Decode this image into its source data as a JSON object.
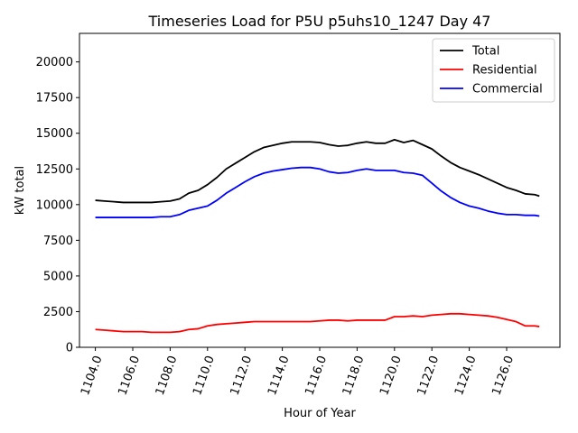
{
  "chart_data": {
    "type": "line",
    "title": "Timeseries Load for P5U p5uhs10_1247  Day 47",
    "xlabel": "Hour of Year",
    "ylabel": "kW total",
    "xlim": [
      1103.15,
      1128.85
    ],
    "ylim": [
      0,
      22000
    ],
    "xticks": [
      1104,
      1106,
      1108,
      1110,
      1112,
      1114,
      1116,
      1118,
      1120,
      1122,
      1124,
      1126
    ],
    "xtick_labels": [
      "1104.0",
      "1106.0",
      "1108.0",
      "1110.0",
      "1112.0",
      "1114.0",
      "1116.0",
      "1118.0",
      "1120.0",
      "1122.0",
      "1124.0",
      "1126.0"
    ],
    "yticks": [
      0,
      2500,
      5000,
      7500,
      10000,
      12500,
      15000,
      17500,
      20000
    ],
    "ytick_labels": [
      "0",
      "2500",
      "5000",
      "7500",
      "10000",
      "12500",
      "15000",
      "17500",
      "20000"
    ],
    "grid": false,
    "legend": "top-right",
    "x": [
      1104.0,
      1104.5,
      1105.0,
      1105.5,
      1106.0,
      1106.5,
      1107.0,
      1107.5,
      1108.0,
      1108.5,
      1109.0,
      1109.5,
      1110.0,
      1110.5,
      1111.0,
      1111.5,
      1112.0,
      1112.5,
      1113.0,
      1113.5,
      1114.0,
      1114.5,
      1115.0,
      1115.5,
      1116.0,
      1116.5,
      1117.0,
      1117.5,
      1118.0,
      1118.5,
      1119.0,
      1119.5,
      1120.0,
      1120.5,
      1121.0,
      1121.5,
      1122.0,
      1122.5,
      1123.0,
      1123.5,
      1124.0,
      1124.5,
      1125.0,
      1125.5,
      1126.0,
      1126.5,
      1127.0,
      1127.5,
      1127.75
    ],
    "series": [
      {
        "name": "Total",
        "color": "#000000",
        "values": [
          10300,
          10250,
          10200,
          10150,
          10150,
          10150,
          10150,
          10200,
          10250,
          10400,
          10800,
          11000,
          11400,
          11900,
          12500,
          12900,
          13300,
          13700,
          14000,
          14150,
          14300,
          14400,
          14400,
          14400,
          14350,
          14200,
          14100,
          14150,
          14300,
          14400,
          14300,
          14300,
          14550,
          14350,
          14500,
          14200,
          13900,
          13400,
          12950,
          12600,
          12350,
          12100,
          11800,
          11500,
          11200,
          11000,
          10750,
          10700,
          10600
        ]
      },
      {
        "name": "Residential",
        "color": "#ff0000",
        "values": [
          1250,
          1200,
          1150,
          1100,
          1100,
          1100,
          1050,
          1050,
          1050,
          1100,
          1250,
          1300,
          1500,
          1600,
          1650,
          1700,
          1750,
          1800,
          1800,
          1800,
          1800,
          1800,
          1800,
          1800,
          1850,
          1900,
          1900,
          1850,
          1900,
          1900,
          1900,
          1900,
          2150,
          2150,
          2200,
          2150,
          2250,
          2300,
          2350,
          2350,
          2300,
          2250,
          2200,
          2100,
          1950,
          1800,
          1500,
          1500,
          1450
        ]
      },
      {
        "name": "Commercial",
        "color": "#0000ff",
        "values": [
          9100,
          9100,
          9100,
          9100,
          9100,
          9100,
          9100,
          9150,
          9150,
          9300,
          9600,
          9750,
          9900,
          10300,
          10800,
          11200,
          11600,
          11950,
          12200,
          12350,
          12450,
          12550,
          12600,
          12600,
          12500,
          12300,
          12200,
          12250,
          12400,
          12500,
          12400,
          12400,
          12400,
          12250,
          12200,
          12050,
          11500,
          10950,
          10500,
          10150,
          9900,
          9750,
          9550,
          9400,
          9300,
          9300,
          9250,
          9250,
          9200
        ]
      }
    ]
  }
}
